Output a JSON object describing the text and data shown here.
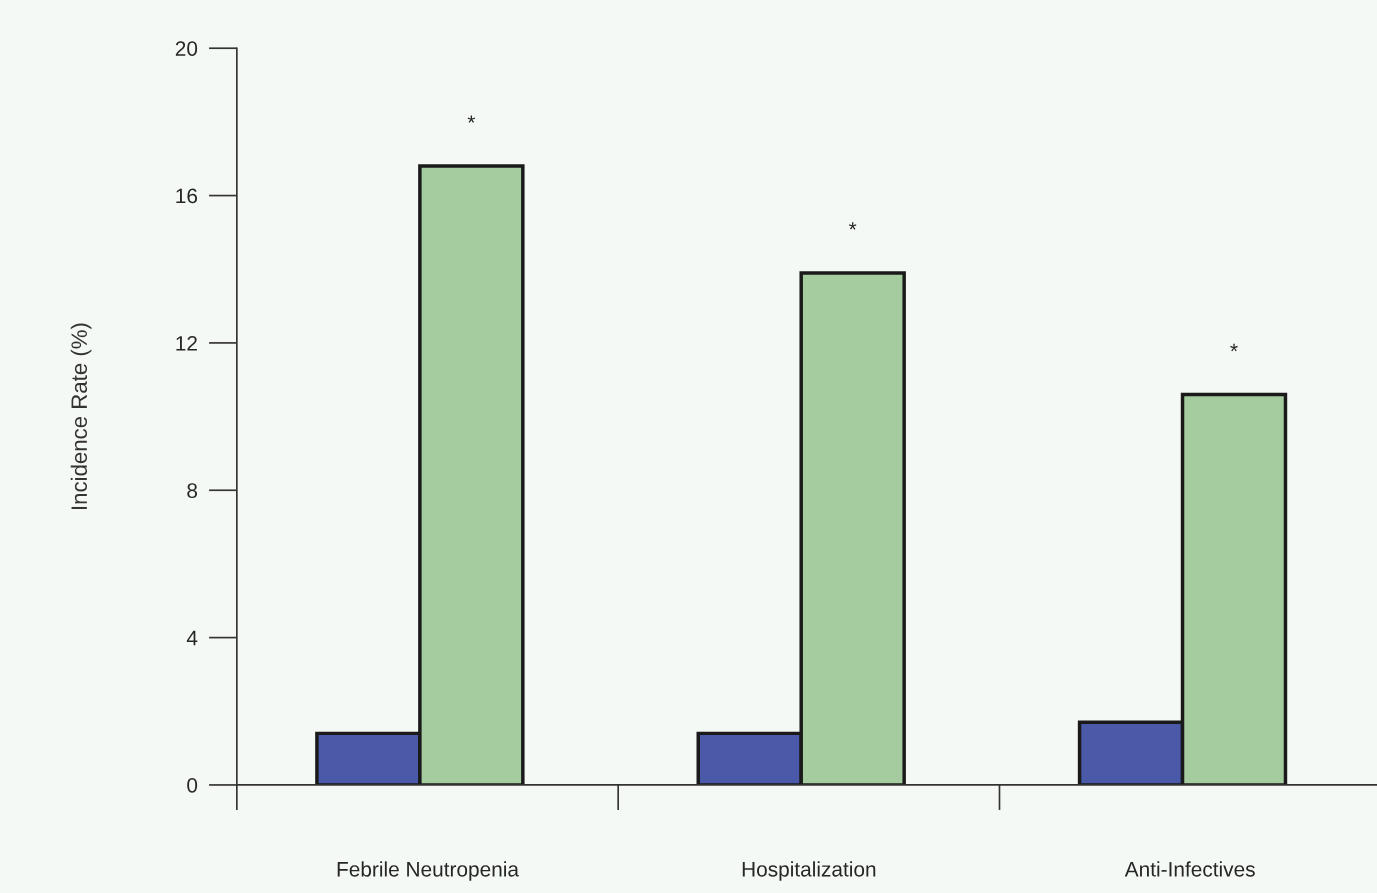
{
  "chart_data": {
    "type": "bar",
    "ylabel": "Incidence Rate (%)",
    "categories": [
      "Febrile Neutropenia",
      "Hospitalization",
      "Anti-Infectives"
    ],
    "series": [
      {
        "color": "#4a5aa8",
        "values": [
          1.4,
          1.4,
          1.7
        ]
      },
      {
        "color": "#a5cc9e",
        "values": [
          16.8,
          13.9,
          10.6
        ]
      }
    ],
    "ylim": [
      0,
      20
    ],
    "yticks": [
      0,
      4,
      8,
      12,
      16,
      20
    ],
    "grid": false,
    "annotations": [
      "*",
      "*",
      "*"
    ]
  }
}
